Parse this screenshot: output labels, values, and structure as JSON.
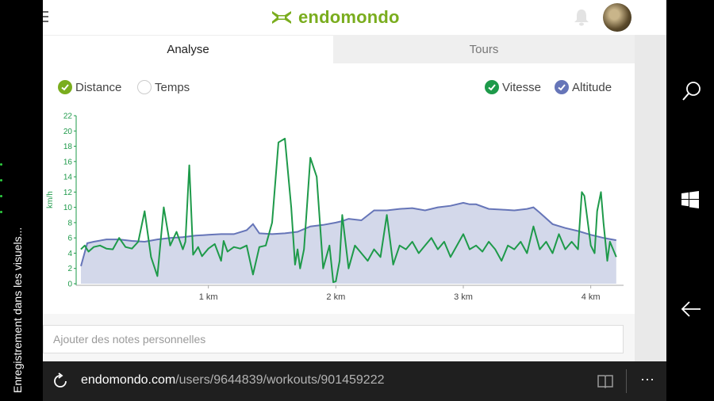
{
  "system": {
    "recording_text": "Enregistrement dans les visuels..."
  },
  "header": {
    "logo_text": "endomondo",
    "brand_color": "#7aad1e",
    "icons": [
      "menu-icon",
      "bell-icon",
      "avatar"
    ]
  },
  "tabs": [
    {
      "label": "Analyse",
      "active": true
    },
    {
      "label": "Tours",
      "active": false
    }
  ],
  "toggles": {
    "distance": {
      "label": "Distance",
      "checked": true,
      "color": "#7aad1e"
    },
    "temps": {
      "label": "Temps",
      "checked": false
    },
    "vitesse": {
      "label": "Vitesse",
      "checked": true,
      "color": "#1e9a4a"
    },
    "altitude": {
      "label": "Altitude",
      "checked": true,
      "color": "#6675b8"
    }
  },
  "chart_data": {
    "type": "line",
    "ylabel": "km/h",
    "ylim": [
      0,
      22
    ],
    "yticks": [
      0,
      2,
      4,
      6,
      8,
      10,
      12,
      14,
      16,
      18,
      20,
      22
    ],
    "xlim": [
      0,
      4.22
    ],
    "xticks": [
      {
        "value": 1,
        "label": "1 km"
      },
      {
        "value": 2,
        "label": "2 km"
      },
      {
        "value": 3,
        "label": "3 km"
      },
      {
        "value": 4,
        "label": "4 km"
      }
    ],
    "series": [
      {
        "name": "Altitude",
        "kind": "area",
        "color": "#6675b8",
        "fill": "#d3d8ea",
        "x": [
          0,
          0.05,
          0.1,
          0.2,
          0.3,
          0.4,
          0.5,
          0.6,
          0.7,
          0.8,
          0.9,
          1.0,
          1.1,
          1.2,
          1.3,
          1.35,
          1.4,
          1.5,
          1.6,
          1.7,
          1.8,
          1.9,
          2.0,
          2.05,
          2.1,
          2.2,
          2.3,
          2.4,
          2.5,
          2.6,
          2.7,
          2.8,
          2.9,
          3.0,
          3.05,
          3.1,
          3.2,
          3.3,
          3.4,
          3.5,
          3.55,
          3.6,
          3.7,
          3.8,
          3.9,
          4.0,
          4.1,
          4.2
        ],
        "y": [
          2.3,
          5.3,
          5.5,
          5.8,
          5.8,
          5.6,
          5.5,
          5.8,
          6.0,
          6.1,
          6.3,
          6.4,
          6.5,
          6.5,
          7.0,
          7.8,
          6.6,
          6.5,
          6.6,
          6.8,
          7.5,
          7.7,
          8.0,
          8.2,
          8.5,
          8.3,
          9.6,
          9.6,
          9.8,
          9.9,
          9.6,
          10.0,
          10.2,
          10.6,
          10.4,
          10.4,
          9.8,
          9.7,
          9.6,
          9.8,
          10.0,
          9.3,
          7.8,
          7.3,
          6.9,
          6.4,
          6.0,
          5.7
        ]
      },
      {
        "name": "Vitesse",
        "kind": "line",
        "color": "#1e9a4a",
        "x": [
          0,
          0.03,
          0.06,
          0.1,
          0.15,
          0.2,
          0.25,
          0.3,
          0.35,
          0.4,
          0.45,
          0.5,
          0.55,
          0.6,
          0.65,
          0.7,
          0.75,
          0.8,
          0.82,
          0.85,
          0.88,
          0.92,
          0.95,
          1.0,
          1.05,
          1.1,
          1.12,
          1.15,
          1.2,
          1.25,
          1.3,
          1.35,
          1.4,
          1.45,
          1.5,
          1.55,
          1.6,
          1.65,
          1.68,
          1.7,
          1.72,
          1.75,
          1.8,
          1.85,
          1.9,
          1.95,
          1.98,
          2.0,
          2.03,
          2.05,
          2.1,
          2.15,
          2.2,
          2.25,
          2.3,
          2.35,
          2.4,
          2.45,
          2.5,
          2.55,
          2.6,
          2.65,
          2.7,
          2.75,
          2.8,
          2.85,
          2.9,
          2.95,
          3.0,
          3.05,
          3.1,
          3.15,
          3.2,
          3.25,
          3.3,
          3.35,
          3.4,
          3.45,
          3.5,
          3.55,
          3.6,
          3.65,
          3.7,
          3.75,
          3.8,
          3.85,
          3.9,
          3.93,
          3.95,
          4.0,
          4.03,
          4.05,
          4.08,
          4.1,
          4.13,
          4.15,
          4.2
        ],
        "y": [
          4.5,
          5.0,
          4.2,
          4.8,
          5.0,
          4.6,
          4.5,
          6.0,
          4.8,
          4.6,
          5.5,
          9.5,
          3.5,
          1.0,
          10.0,
          5.0,
          6.8,
          4.5,
          5.5,
          15.5,
          3.8,
          4.8,
          3.6,
          4.6,
          5.2,
          3.0,
          5.6,
          4.2,
          4.8,
          4.6,
          5.0,
          1.2,
          4.8,
          5.0,
          8.0,
          18.5,
          19.0,
          10.0,
          2.5,
          4.5,
          2.0,
          4.5,
          16.5,
          14.0,
          2.0,
          5.0,
          0.2,
          0.3,
          3.0,
          9.0,
          2.0,
          5.0,
          4.0,
          3.0,
          4.5,
          3.5,
          9.0,
          2.5,
          5.0,
          4.5,
          5.5,
          4.0,
          5.0,
          6.0,
          4.5,
          5.5,
          3.5,
          5.0,
          6.5,
          4.5,
          5.0,
          4.2,
          5.5,
          4.5,
          3.0,
          5.0,
          4.5,
          5.5,
          4.0,
          7.5,
          4.5,
          5.5,
          4.0,
          6.5,
          4.5,
          5.5,
          4.5,
          12.0,
          11.5,
          5.0,
          4.0,
          9.5,
          12.0,
          8.0,
          3.0,
          5.5,
          3.5
        ]
      }
    ]
  },
  "notes": {
    "placeholder": "Ajouter des notes personnelles"
  },
  "address_bar": {
    "url_domain": "endomondo.com",
    "url_path": "/users/9644839/workouts/901459222",
    "more_label": "···"
  }
}
